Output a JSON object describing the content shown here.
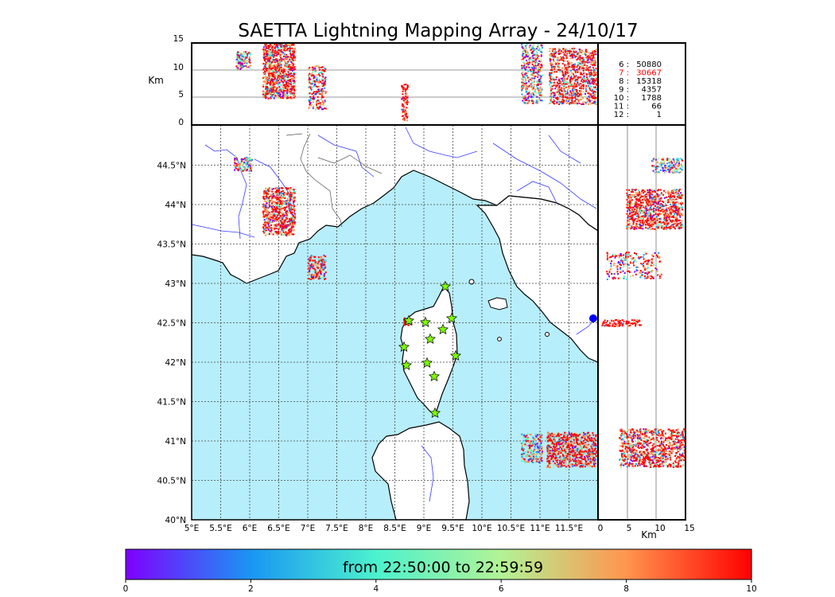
{
  "title": "SAETTA Lightning Mapping Array - 24/10/17",
  "km_label": "Km",
  "top_panel": {
    "y_ticks": [
      "15",
      "10",
      "5",
      "0"
    ]
  },
  "side_panel": {
    "x_ticks": [
      "0",
      "5",
      "10",
      "15"
    ]
  },
  "map": {
    "lon_ticks": [
      "5°E",
      "5.5°E",
      "6°E",
      "6.5°E",
      "7°E",
      "7.5°E",
      "8°E",
      "8.5°E",
      "9°E",
      "9.5°E",
      "10°E",
      "10.5°E",
      "11°E",
      "11.5°E"
    ],
    "lat_ticks": [
      "44.5°N",
      "44°N",
      "43.5°N",
      "43°N",
      "42.5°N",
      "42°N",
      "41.5°N",
      "41°N",
      "40.5°N",
      "40°N"
    ],
    "sea_color": "#b7eefb",
    "station_color": "#7cfc00"
  },
  "station_counts": [
    {
      "n": "6",
      "count": "50880",
      "color": "#000000"
    },
    {
      "n": "7",
      "count": "30667",
      "color": "#ff0000"
    },
    {
      "n": "8",
      "count": "15318",
      "color": "#000000"
    },
    {
      "n": "9",
      "count": "4357",
      "color": "#000000"
    },
    {
      "n": "10",
      "count": "1788",
      "color": "#000000"
    },
    {
      "n": "11",
      "count": "66",
      "color": "#000000"
    },
    {
      "n": "12",
      "count": "1",
      "color": "#000000"
    }
  ],
  "colorbar": {
    "label": "from 22:50:00 to 22:59:59",
    "ticks": [
      "0",
      "2",
      "4",
      "6",
      "8",
      "10"
    ],
    "colors": [
      "#7f00ff",
      "#1996f3",
      "#4cf2ce",
      "#b2f396",
      "#ff954e",
      "#ff0000"
    ]
  }
}
